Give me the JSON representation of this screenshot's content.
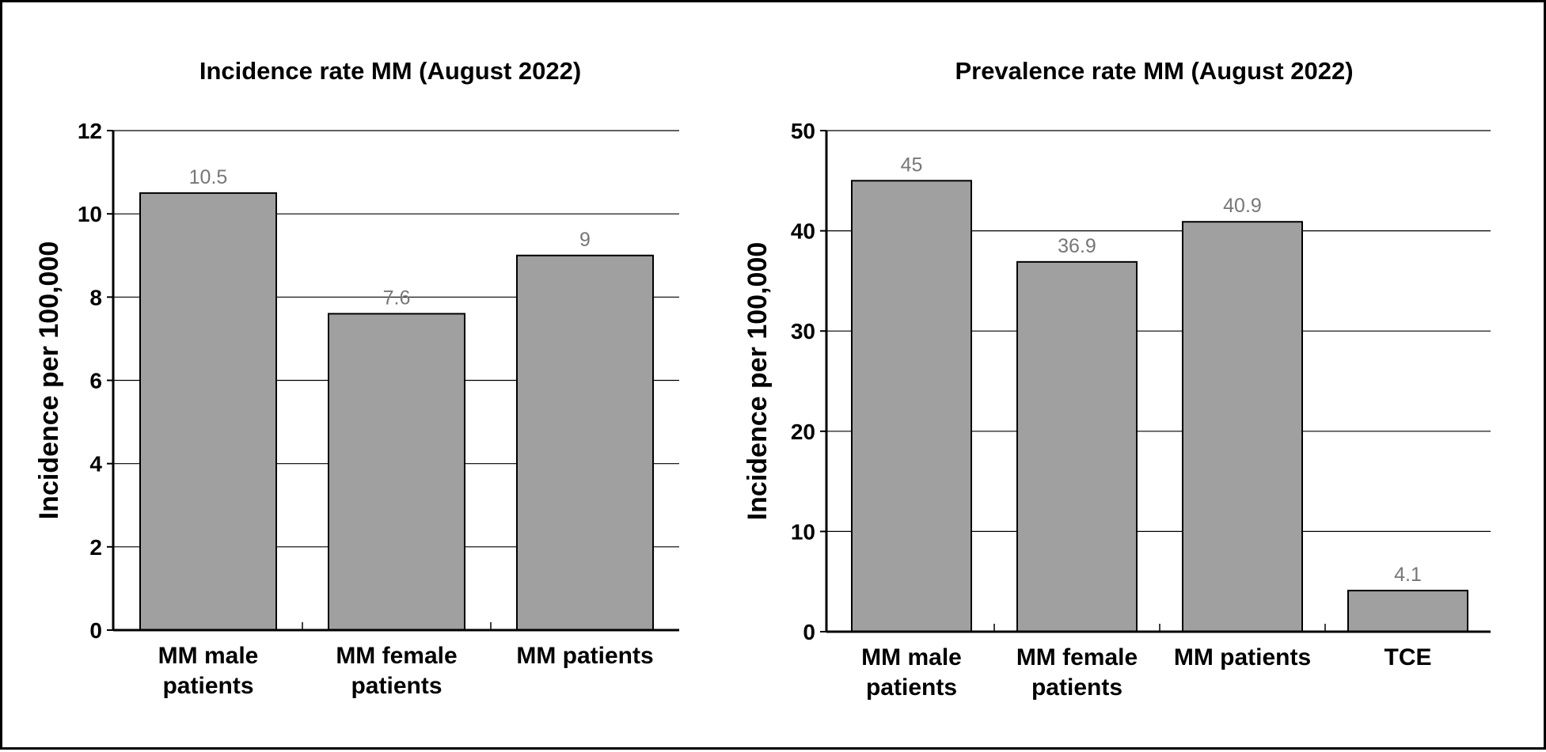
{
  "chart_data": [
    {
      "type": "bar",
      "title": "Incidence rate MM (August 2022)",
      "ylabel": "Incidence per 100,000",
      "xlabel": "",
      "categories": [
        [
          "MM male",
          "patients"
        ],
        [
          "MM female",
          "patients"
        ],
        [
          "MM patients"
        ]
      ],
      "values": [
        10.5,
        7.6,
        9
      ],
      "data_labels": [
        "10.5",
        "7.6",
        "9"
      ],
      "ylim": [
        0,
        12
      ],
      "yticks": [
        0,
        2,
        4,
        6,
        8,
        10,
        12
      ],
      "grid": true,
      "legend": "none"
    },
    {
      "type": "bar",
      "title": "Prevalence rate MM (August 2022)",
      "ylabel": "Incidence per 100,000",
      "xlabel": "",
      "categories": [
        [
          "MM male",
          "patients"
        ],
        [
          "MM female",
          "patients"
        ],
        [
          "MM patients"
        ],
        [
          "TCE"
        ]
      ],
      "values": [
        45,
        36.9,
        40.9,
        4.1
      ],
      "data_labels": [
        "45",
        "36.9",
        "40.9",
        "4.1"
      ],
      "ylim": [
        0,
        50
      ],
      "yticks": [
        0,
        10,
        20,
        30,
        40,
        50
      ],
      "grid": true,
      "legend": "none"
    }
  ],
  "colors": {
    "bar": "#a0a0a0",
    "bar_edge": "#000000",
    "grid": "#000000",
    "data_label": "#777777"
  }
}
